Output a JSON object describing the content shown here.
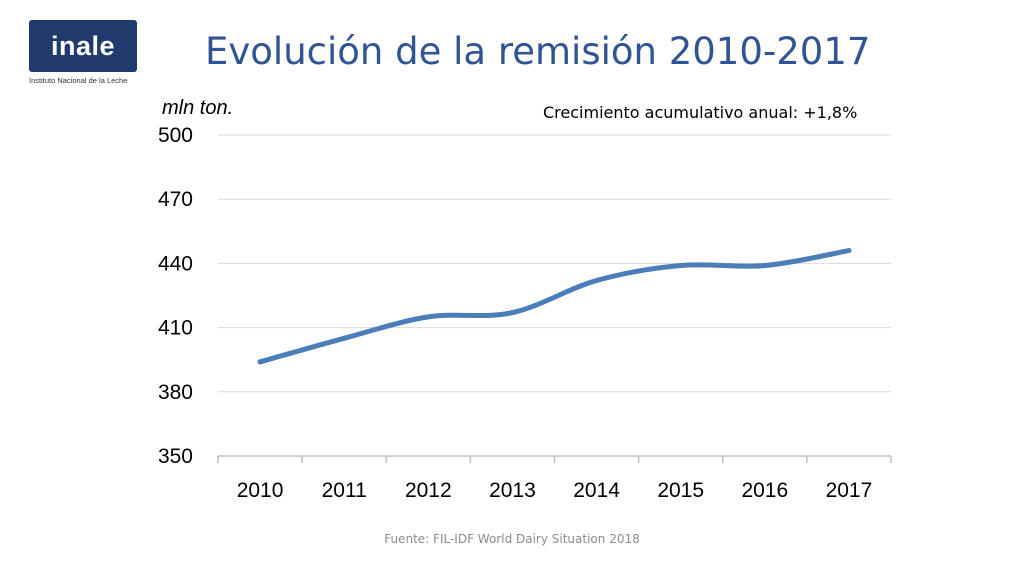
{
  "logo": {
    "text": "inale",
    "subtitle": "Instituto Nacional de la Leche",
    "color": "#1f3a6b"
  },
  "title": "Evolución de la remisión 2010-2017",
  "note": "Crecimiento acumulativo anual: +1,8%",
  "source": "Fuente: FIL-IDF World Dairy Situation 2018",
  "colors": {
    "title": "#2f5596",
    "line": "#4a7ebb",
    "grid": "#d9d9d9"
  },
  "chart_data": {
    "type": "line",
    "title": "Evolución de la remisión 2010-2017",
    "ylabel": "mln ton.",
    "xlabel": "",
    "categories": [
      "2010",
      "2011",
      "2012",
      "2013",
      "2014",
      "2015",
      "2016",
      "2017"
    ],
    "series": [
      {
        "values": [
          394,
          405,
          415,
          417,
          432,
          439,
          439,
          446
        ]
      }
    ],
    "ylim": [
      350,
      500
    ],
    "yticks": [
      350,
      380,
      410,
      440,
      470,
      500
    ],
    "grid": true,
    "smooth": true
  }
}
